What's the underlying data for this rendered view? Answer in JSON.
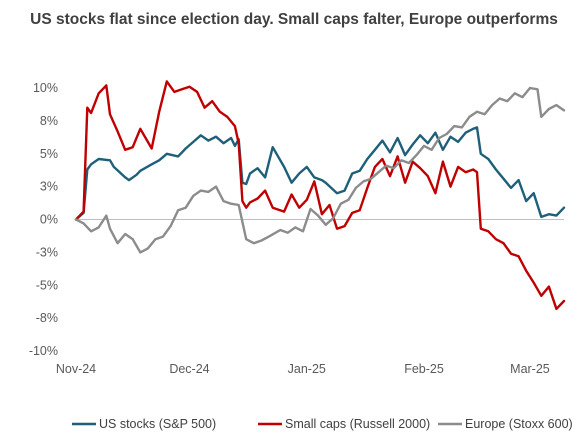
{
  "chart_data": {
    "type": "line",
    "title": "US stocks flat since election day. Small caps falter, Europe outperforms",
    "xlabel": "",
    "ylabel": "",
    "ylim": [
      -10,
      10
    ],
    "y_ticks": [
      {
        "value": 10,
        "label": "10%"
      },
      {
        "value": 7.5,
        "label": "8%"
      },
      {
        "value": 5,
        "label": "5%"
      },
      {
        "value": 2.5,
        "label": "3%"
      },
      {
        "value": 0,
        "label": "0%"
      },
      {
        "value": -2.5,
        "label": "-3%"
      },
      {
        "value": -5,
        "label": "-5%"
      },
      {
        "value": -7.5,
        "label": "-8%"
      },
      {
        "value": -10,
        "label": "-10%"
      }
    ],
    "x_range": [
      "2024-11-05",
      "2025-03-14"
    ],
    "x_ticks": [
      {
        "date": "2024-11-05",
        "label": "Nov-24"
      },
      {
        "date": "2024-12-05",
        "label": "Dec-24"
      },
      {
        "date": "2025-01-05",
        "label": "Jan-25"
      },
      {
        "date": "2025-02-05",
        "label": "Feb-25"
      },
      {
        "date": "2025-03-05",
        "label": "Mar-25"
      }
    ],
    "grid": false,
    "legend_position": "bottom",
    "colors": {
      "us": "#1f5f7a",
      "small": "#c00000",
      "europe": "#8c8c8c",
      "axis": "#bfbfbf"
    },
    "series": [
      {
        "name": "US stocks (S&P 500)",
        "color": "#1f5f7a",
        "points": [
          [
            "2024-11-05",
            0
          ],
          [
            "2024-11-07",
            0.5
          ],
          [
            "2024-11-08",
            3.8
          ],
          [
            "2024-11-09",
            4.2
          ],
          [
            "2024-11-11",
            4.6
          ],
          [
            "2024-11-14",
            4.5
          ],
          [
            "2024-11-15",
            4.0
          ],
          [
            "2024-11-18",
            3.2
          ],
          [
            "2024-11-19",
            3.0
          ],
          [
            "2024-11-21",
            3.4
          ],
          [
            "2024-11-22",
            3.7
          ],
          [
            "2024-11-25",
            4.2
          ],
          [
            "2024-11-27",
            4.5
          ],
          [
            "2024-11-29",
            5.0
          ],
          [
            "2024-12-02",
            4.8
          ],
          [
            "2024-12-04",
            5.4
          ],
          [
            "2024-12-06",
            5.9
          ],
          [
            "2024-12-08",
            6.4
          ],
          [
            "2024-12-10",
            6.0
          ],
          [
            "2024-12-12",
            6.3
          ],
          [
            "2024-12-14",
            5.8
          ],
          [
            "2024-12-16",
            6.2
          ],
          [
            "2024-12-17",
            5.6
          ],
          [
            "2024-12-18",
            6.1
          ],
          [
            "2024-12-19",
            2.8
          ],
          [
            "2024-12-20",
            2.7
          ],
          [
            "2024-12-21",
            3.5
          ],
          [
            "2024-12-23",
            3.9
          ],
          [
            "2024-12-25",
            3.2
          ],
          [
            "2024-12-27",
            5.5
          ],
          [
            "2024-12-30",
            4.0
          ],
          [
            "2025-01-01",
            2.8
          ],
          [
            "2025-01-03",
            3.5
          ],
          [
            "2025-01-05",
            4.0
          ],
          [
            "2025-01-07",
            3.2
          ],
          [
            "2025-01-09",
            3.0
          ],
          [
            "2025-01-10",
            2.8
          ],
          [
            "2025-01-13",
            2.0
          ],
          [
            "2025-01-15",
            2.2
          ],
          [
            "2025-01-17",
            3.5
          ],
          [
            "2025-01-19",
            3.7
          ],
          [
            "2025-01-21",
            4.6
          ],
          [
            "2025-01-23",
            5.3
          ],
          [
            "2025-01-25",
            6.0
          ],
          [
            "2025-01-27",
            5.1
          ],
          [
            "2025-01-29",
            6.2
          ],
          [
            "2025-01-31",
            4.9
          ],
          [
            "2025-02-02",
            5.7
          ],
          [
            "2025-02-04",
            6.4
          ],
          [
            "2025-02-06",
            5.8
          ],
          [
            "2025-02-08",
            6.6
          ],
          [
            "2025-02-10",
            5.3
          ],
          [
            "2025-02-12",
            6.3
          ],
          [
            "2025-02-14",
            5.9
          ],
          [
            "2025-02-16",
            6.6
          ],
          [
            "2025-02-18",
            6.9
          ],
          [
            "2025-02-19",
            7.0
          ],
          [
            "2025-02-20",
            5.0
          ],
          [
            "2025-02-22",
            4.6
          ],
          [
            "2025-02-24",
            3.8
          ],
          [
            "2025-02-26",
            3.1
          ],
          [
            "2025-02-28",
            2.4
          ],
          [
            "2025-03-02",
            3.0
          ],
          [
            "2025-03-04",
            1.4
          ],
          [
            "2025-03-06",
            2.0
          ],
          [
            "2025-03-08",
            0.2
          ],
          [
            "2025-03-10",
            0.4
          ],
          [
            "2025-03-12",
            0.3
          ],
          [
            "2025-03-14",
            0.9
          ]
        ]
      },
      {
        "name": "Small caps (Russell 2000)",
        "color": "#c00000",
        "points": [
          [
            "2024-11-05",
            0
          ],
          [
            "2024-11-07",
            0.6
          ],
          [
            "2024-11-08",
            8.5
          ],
          [
            "2024-11-09",
            8.1
          ],
          [
            "2024-11-11",
            9.6
          ],
          [
            "2024-11-13",
            10.2
          ],
          [
            "2024-11-14",
            8.0
          ],
          [
            "2024-11-16",
            6.7
          ],
          [
            "2024-11-18",
            5.3
          ],
          [
            "2024-11-20",
            5.5
          ],
          [
            "2024-11-22",
            6.9
          ],
          [
            "2024-11-25",
            5.4
          ],
          [
            "2024-11-27",
            8.2
          ],
          [
            "2024-11-29",
            10.5
          ],
          [
            "2024-12-01",
            9.7
          ],
          [
            "2024-12-03",
            9.9
          ],
          [
            "2024-12-05",
            10.1
          ],
          [
            "2024-12-07",
            9.7
          ],
          [
            "2024-12-09",
            8.5
          ],
          [
            "2024-12-11",
            9.0
          ],
          [
            "2024-12-13",
            8.2
          ],
          [
            "2024-12-15",
            7.8
          ],
          [
            "2024-12-17",
            7.1
          ],
          [
            "2024-12-18",
            5.8
          ],
          [
            "2024-12-19",
            1.4
          ],
          [
            "2024-12-20",
            0.9
          ],
          [
            "2024-12-21",
            1.3
          ],
          [
            "2024-12-23",
            1.6
          ],
          [
            "2024-12-25",
            2.2
          ],
          [
            "2024-12-27",
            0.9
          ],
          [
            "2024-12-30",
            0.6
          ],
          [
            "2025-01-01",
            1.9
          ],
          [
            "2025-01-03",
            0.9
          ],
          [
            "2025-01-05",
            1.5
          ],
          [
            "2025-01-07",
            2.9
          ],
          [
            "2025-01-09",
            0.4
          ],
          [
            "2025-01-11",
            1.1
          ],
          [
            "2025-01-13",
            -0.7
          ],
          [
            "2025-01-15",
            -0.5
          ],
          [
            "2025-01-17",
            0.5
          ],
          [
            "2025-01-19",
            0.7
          ],
          [
            "2025-01-21",
            2.4
          ],
          [
            "2025-01-23",
            4.0
          ],
          [
            "2025-01-25",
            4.6
          ],
          [
            "2025-01-27",
            3.3
          ],
          [
            "2025-01-29",
            4.8
          ],
          [
            "2025-01-31",
            2.8
          ],
          [
            "2025-02-02",
            4.4
          ],
          [
            "2025-02-04",
            3.9
          ],
          [
            "2025-02-06",
            3.3
          ],
          [
            "2025-02-08",
            2.0
          ],
          [
            "2025-02-10",
            4.4
          ],
          [
            "2025-02-12",
            2.5
          ],
          [
            "2025-02-14",
            4.0
          ],
          [
            "2025-02-16",
            3.6
          ],
          [
            "2025-02-18",
            3.8
          ],
          [
            "2025-02-19",
            3.6
          ],
          [
            "2025-02-20",
            -0.7
          ],
          [
            "2025-02-22",
            -0.9
          ],
          [
            "2025-02-24",
            -1.5
          ],
          [
            "2025-02-26",
            -1.8
          ],
          [
            "2025-02-28",
            -2.6
          ],
          [
            "2025-03-02",
            -2.8
          ],
          [
            "2025-03-04",
            -3.9
          ],
          [
            "2025-03-06",
            -4.8
          ],
          [
            "2025-03-08",
            -5.8
          ],
          [
            "2025-03-10",
            -5.1
          ],
          [
            "2025-03-12",
            -6.8
          ],
          [
            "2025-03-14",
            -6.2
          ]
        ]
      },
      {
        "name": "Europe (Stoxx 600)",
        "color": "#8c8c8c",
        "points": [
          [
            "2024-11-05",
            0
          ],
          [
            "2024-11-07",
            -0.3
          ],
          [
            "2024-11-09",
            -0.9
          ],
          [
            "2024-11-11",
            -0.6
          ],
          [
            "2024-11-13",
            0.3
          ],
          [
            "2024-11-14",
            -0.7
          ],
          [
            "2024-11-16",
            -1.8
          ],
          [
            "2024-11-18",
            -1.1
          ],
          [
            "2024-11-20",
            -1.5
          ],
          [
            "2024-11-22",
            -2.5
          ],
          [
            "2024-11-24",
            -2.2
          ],
          [
            "2024-11-26",
            -1.5
          ],
          [
            "2024-11-28",
            -1.3
          ],
          [
            "2024-11-30",
            -0.5
          ],
          [
            "2024-12-02",
            0.7
          ],
          [
            "2024-12-04",
            0.9
          ],
          [
            "2024-12-06",
            1.8
          ],
          [
            "2024-12-08",
            2.2
          ],
          [
            "2024-12-10",
            2.1
          ],
          [
            "2024-12-12",
            2.5
          ],
          [
            "2024-12-14",
            1.4
          ],
          [
            "2024-12-16",
            1.2
          ],
          [
            "2024-12-18",
            1.1
          ],
          [
            "2024-12-20",
            -1.5
          ],
          [
            "2024-12-22",
            -1.8
          ],
          [
            "2024-12-24",
            -1.6
          ],
          [
            "2024-12-26",
            -1.3
          ],
          [
            "2024-12-29",
            -0.8
          ],
          [
            "2024-12-31",
            -1.0
          ],
          [
            "2025-01-02",
            -0.6
          ],
          [
            "2025-01-04",
            -0.9
          ],
          [
            "2025-01-06",
            0.8
          ],
          [
            "2025-01-08",
            0.3
          ],
          [
            "2025-01-10",
            -0.4
          ],
          [
            "2025-01-12",
            0.1
          ],
          [
            "2025-01-14",
            1.2
          ],
          [
            "2025-01-16",
            1.5
          ],
          [
            "2025-01-18",
            2.4
          ],
          [
            "2025-01-20",
            2.9
          ],
          [
            "2025-01-22",
            3.1
          ],
          [
            "2025-01-24",
            3.6
          ],
          [
            "2025-01-26",
            4.1
          ],
          [
            "2025-01-28",
            3.9
          ],
          [
            "2025-01-30",
            4.5
          ],
          [
            "2025-02-01",
            4.3
          ],
          [
            "2025-02-03",
            4.9
          ],
          [
            "2025-02-05",
            5.6
          ],
          [
            "2025-02-07",
            5.3
          ],
          [
            "2025-02-09",
            6.2
          ],
          [
            "2025-02-11",
            6.5
          ],
          [
            "2025-02-13",
            7.1
          ],
          [
            "2025-02-15",
            7.0
          ],
          [
            "2025-02-17",
            7.8
          ],
          [
            "2025-02-19",
            8.2
          ],
          [
            "2025-02-21",
            8.0
          ],
          [
            "2025-02-23",
            8.7
          ],
          [
            "2025-02-25",
            9.2
          ],
          [
            "2025-02-27",
            9.0
          ],
          [
            "2025-03-01",
            9.6
          ],
          [
            "2025-03-03",
            9.3
          ],
          [
            "2025-03-05",
            10.0
          ],
          [
            "2025-03-07",
            9.9
          ],
          [
            "2025-03-08",
            7.8
          ],
          [
            "2025-03-10",
            8.4
          ],
          [
            "2025-03-12",
            8.7
          ],
          [
            "2025-03-14",
            8.3
          ]
        ]
      }
    ]
  }
}
